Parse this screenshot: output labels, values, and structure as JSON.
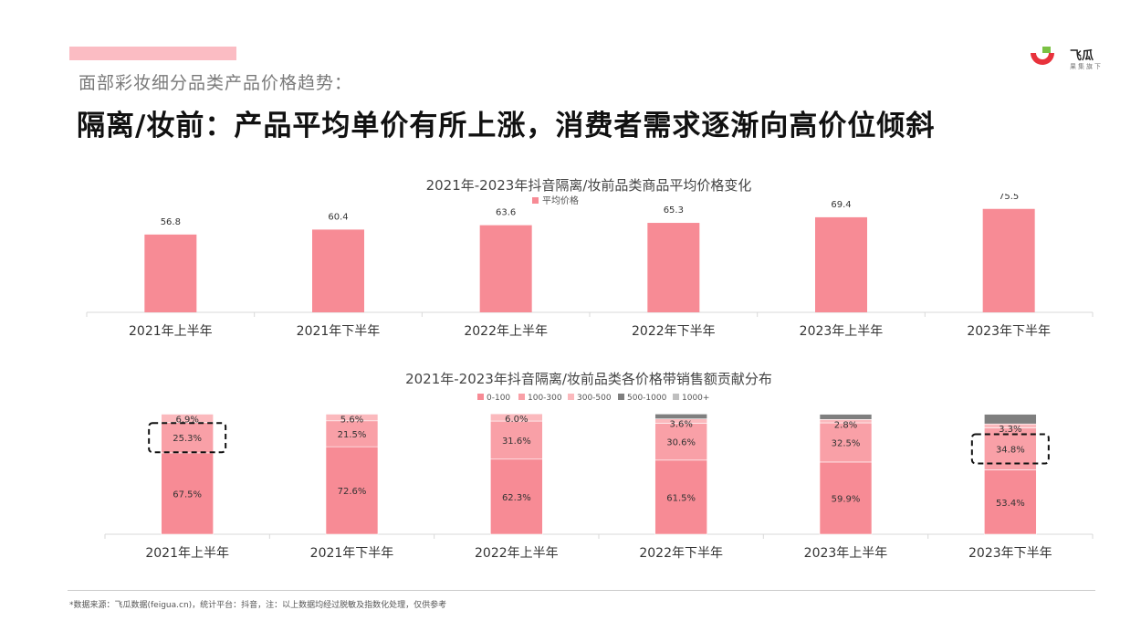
{
  "header": {
    "subtitle": "面部彩妆细分品类产品价格趋势：",
    "headline": "隔离/妆前：产品平均单价有所上涨，消费者需求逐渐向高价位倾斜"
  },
  "logo": {
    "brand": "飞瓜",
    "sub": "果集旗下"
  },
  "colors": {
    "accent": "#fbbcc3",
    "bar": "#f78b95",
    "band_0_100": "#f78b95",
    "band_100_300": "#f9a0a7",
    "band_300_500": "#fbb9bd",
    "band_500_1000": "#7f7f7f",
    "band_1000_plus": "#bfbfbf"
  },
  "chart_data": [
    {
      "type": "bar",
      "title": "2021年-2023年抖音隔离/妆前品类商品平均价格变化",
      "categories": [
        "2021年上半年",
        "2021年下半年",
        "2022年上半年",
        "2022年下半年",
        "2023年上半年",
        "2023年下半年"
      ],
      "series": [
        {
          "name": "平均价格",
          "values": [
            56.8,
            60.4,
            63.6,
            65.3,
            69.4,
            75.5
          ]
        }
      ],
      "value_labels": [
        "56.8",
        "60.4",
        "63.6",
        "65.3",
        "69.4",
        "75.5"
      ],
      "legend": "top-center",
      "grid": false,
      "ylim": [
        0,
        80
      ]
    },
    {
      "type": "bar",
      "stacked": true,
      "title": "2021年-2023年抖音隔离/妆前品类各价格带销售额贡献分布",
      "categories": [
        "2021年上半年",
        "2021年下半年",
        "2022年上半年",
        "2022年下半年",
        "2023年上半年",
        "2023年下半年"
      ],
      "series": [
        {
          "name": "0-100",
          "values": [
            67.5,
            72.6,
            62.3,
            61.5,
            59.9,
            53.4
          ],
          "labels": [
            "67.5%",
            "72.6%",
            "62.3%",
            "61.5%",
            "59.9%",
            "53.4%"
          ]
        },
        {
          "name": "100-300",
          "values": [
            25.3,
            21.5,
            31.6,
            30.6,
            32.5,
            34.8
          ],
          "labels": [
            "25.3%",
            "21.5%",
            "31.6%",
            "30.6%",
            "32.5%",
            "34.8%"
          ]
        },
        {
          "name": "300-500",
          "values": [
            6.9,
            5.6,
            6.0,
            3.6,
            2.8,
            3.3
          ],
          "labels": [
            "6.9%",
            "5.6%",
            "6.0%",
            "3.6%",
            "2.8%",
            "3.3%"
          ]
        },
        {
          "name": "500-1000",
          "values": [
            0.2,
            0.2,
            0.1,
            4.1,
            4.4,
            8.1
          ],
          "labels": [
            "",
            "",
            "",
            "",
            "",
            ""
          ]
        },
        {
          "name": "1000+",
          "values": [
            0.1,
            0.1,
            0.0,
            0.2,
            0.4,
            0.4
          ],
          "labels": [
            "",
            "",
            "",
            "",
            "",
            ""
          ]
        }
      ],
      "highlighted": [
        {
          "category_index": 0,
          "series_index": 1
        },
        {
          "category_index": 5,
          "series_index": 1
        }
      ],
      "legend": "top-center",
      "grid": false,
      "ylim": [
        0,
        100
      ]
    }
  ],
  "footnote": "*数据来源：飞瓜数据(feigua.cn)，统计平台：抖音，注：以上数据均经过脱敏及指数化处理，仅供参考"
}
